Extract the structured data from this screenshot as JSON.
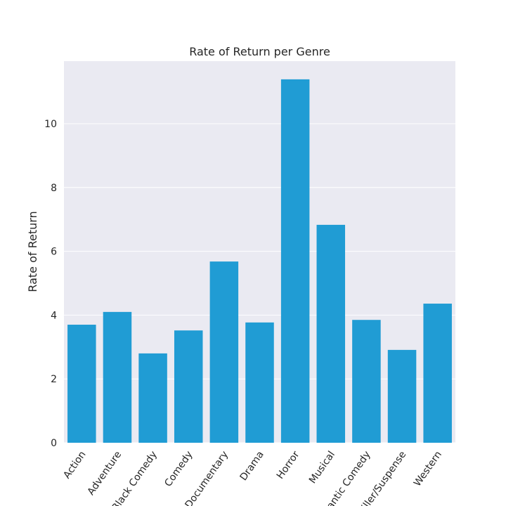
{
  "chart_data": {
    "type": "bar",
    "title": "Rate of Return per Genre",
    "y_label": "Rate of Return",
    "categories": [
      "Action",
      "Adventure",
      "Black Comedy",
      "Comedy",
      "Documentary",
      "Drama",
      "Horror",
      "Musical",
      "Romantic Comedy",
      "Thriller/Suspense",
      "Western"
    ],
    "values": [
      3.7,
      4.1,
      2.8,
      3.52,
      5.68,
      3.77,
      11.39,
      6.83,
      3.85,
      2.91,
      4.36
    ],
    "color": "#209cd4",
    "ylim": [
      0,
      11.96
    ],
    "yticks": [
      0,
      2,
      4,
      6,
      8,
      10
    ],
    "grid": true
  }
}
